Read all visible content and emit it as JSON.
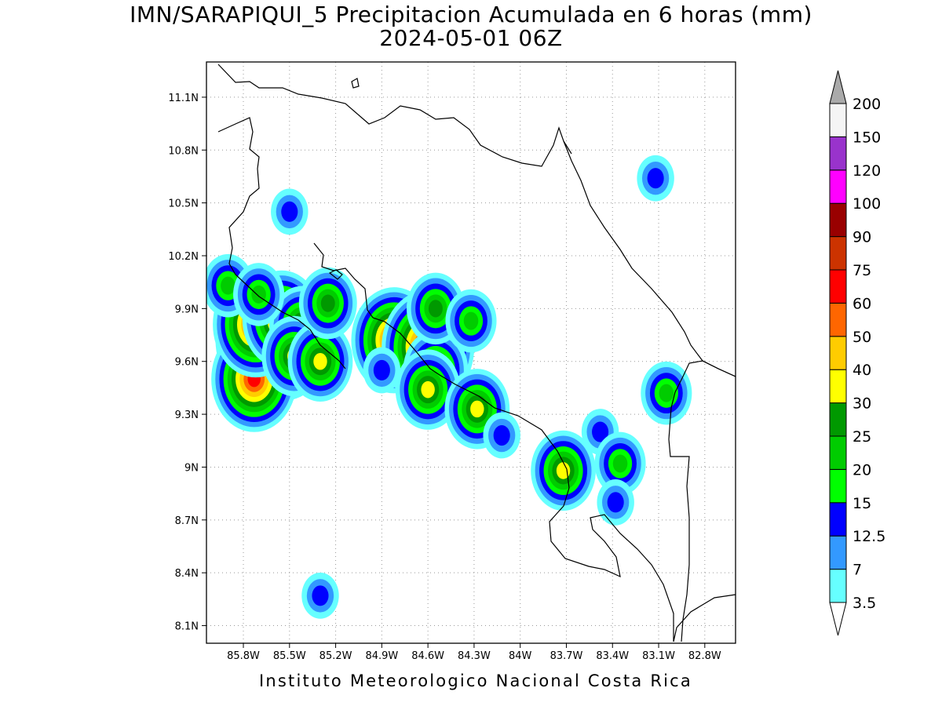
{
  "title": {
    "line1": "IMN/SARAPIQUI_5 Precipitacion Acumulada en 6 horas (mm)",
    "line2": "2024-05-01 06Z"
  },
  "footer": "Instituto Meteorologico Nacional Costa Rica",
  "map": {
    "lon_range": [
      -86.04,
      -82.6
    ],
    "lat_range": [
      8.0,
      11.3
    ],
    "lon_ticks": [
      {
        "value": -85.8,
        "label": "85.8W"
      },
      {
        "value": -85.5,
        "label": "85.5W"
      },
      {
        "value": -85.2,
        "label": "85.2W"
      },
      {
        "value": -84.9,
        "label": "84.9W"
      },
      {
        "value": -84.6,
        "label": "84.6W"
      },
      {
        "value": -84.3,
        "label": "84.3W"
      },
      {
        "value": -84.0,
        "label": "84W"
      },
      {
        "value": -83.7,
        "label": "83.7W"
      },
      {
        "value": -83.4,
        "label": "83.4W"
      },
      {
        "value": -83.1,
        "label": "83.1W"
      },
      {
        "value": -82.8,
        "label": "82.8W"
      }
    ],
    "lat_ticks": [
      {
        "value": 11.1,
        "label": "11.1N"
      },
      {
        "value": 10.8,
        "label": "10.8N"
      },
      {
        "value": 10.5,
        "label": "10.5N"
      },
      {
        "value": 10.2,
        "label": "10.2N"
      },
      {
        "value": 9.9,
        "label": "9.9N"
      },
      {
        "value": 9.6,
        "label": "9.6N"
      },
      {
        "value": 9.3,
        "label": "9.3N"
      },
      {
        "value": 9.0,
        "label": "9N"
      },
      {
        "value": 8.7,
        "label": "8.7N"
      },
      {
        "value": 8.4,
        "label": "8.4N"
      },
      {
        "value": 8.1,
        "label": "8.1N"
      }
    ],
    "grid": "dotted"
  },
  "colorbar": {
    "levels": [
      "3.5",
      "7",
      "12.5",
      "15",
      "20",
      "25",
      "30",
      "40",
      "50",
      "60",
      "75",
      "90",
      "100",
      "120",
      "150",
      "200"
    ],
    "colors": [
      "#66ffff",
      "#3399ff",
      "#0000ff",
      "#00ff00",
      "#00cc00",
      "#009900",
      "#ffff00",
      "#ffcc00",
      "#ff6600",
      "#ff0000",
      "#cc3300",
      "#990000",
      "#ff00ff",
      "#9933cc",
      "#f5f5f5",
      "#aaaaaa"
    ]
  },
  "precip_cells": [
    {
      "lon": -85.68,
      "lat": 9.72,
      "max": 75
    },
    {
      "lon": -85.53,
      "lat": 9.68,
      "max": 60
    },
    {
      "lon": -85.73,
      "lat": 9.5,
      "max": 60
    },
    {
      "lon": -85.72,
      "lat": 9.81,
      "max": 60
    },
    {
      "lon": -85.55,
      "lat": 9.84,
      "max": 50
    },
    {
      "lon": -85.42,
      "lat": 9.8,
      "max": 30
    },
    {
      "lon": -85.47,
      "lat": 9.63,
      "max": 30
    },
    {
      "lon": -85.3,
      "lat": 9.6,
      "max": 30
    },
    {
      "lon": -85.25,
      "lat": 9.93,
      "max": 25
    },
    {
      "lon": -85.9,
      "lat": 10.03,
      "max": 20
    },
    {
      "lon": -85.7,
      "lat": 9.98,
      "max": 20
    },
    {
      "lon": -85.5,
      "lat": 10.45,
      "max": 12.5
    },
    {
      "lon": -84.82,
      "lat": 9.72,
      "max": 60
    },
    {
      "lon": -84.6,
      "lat": 9.68,
      "max": 75
    },
    {
      "lon": -84.55,
      "lat": 9.55,
      "max": 30
    },
    {
      "lon": -84.6,
      "lat": 9.44,
      "max": 30
    },
    {
      "lon": -84.55,
      "lat": 9.9,
      "max": 25
    },
    {
      "lon": -84.32,
      "lat": 9.83,
      "max": 20
    },
    {
      "lon": -84.9,
      "lat": 9.55,
      "max": 12.5
    },
    {
      "lon": -84.28,
      "lat": 9.33,
      "max": 30
    },
    {
      "lon": -84.12,
      "lat": 9.18,
      "max": 12.5
    },
    {
      "lon": -83.72,
      "lat": 8.98,
      "max": 30
    },
    {
      "lon": -83.48,
      "lat": 9.2,
      "max": 12.5
    },
    {
      "lon": -83.35,
      "lat": 9.02,
      "max": 20
    },
    {
      "lon": -83.38,
      "lat": 8.8,
      "max": 12.5
    },
    {
      "lon": -83.12,
      "lat": 10.64,
      "max": 12.5
    },
    {
      "lon": -83.05,
      "lat": 9.42,
      "max": 20
    },
    {
      "lon": -85.3,
      "lat": 8.27,
      "max": 12.5
    }
  ]
}
